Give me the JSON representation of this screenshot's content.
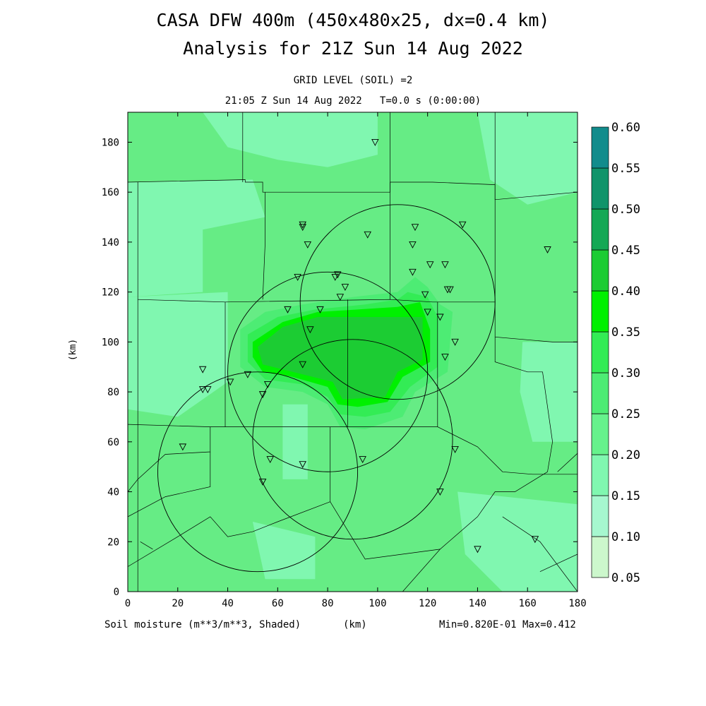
{
  "header": {
    "title_line1": "CASA DFW 400m (450x480x25, dx=0.4 km)",
    "title_line2": "Analysis for 21Z Sun 14 Aug 2022",
    "subtitle_line1": "GRID LEVEL (SOIL) =2",
    "subtitle_line2": "21:05 Z Sun 14 Aug 2022   T=0.0 s (0:00:00)"
  },
  "footer": {
    "field_label": "Soil moisture (m**3/m**3, Shaded)",
    "unit_label": "(km)",
    "minmax": "Min=0.820E-01 Max=0.412"
  },
  "chart_data": {
    "type": "heatmap",
    "xlabel": "(km)",
    "ylabel": "(km)",
    "xlim": [
      0,
      180
    ],
    "ylim": [
      0,
      192
    ],
    "x_ticks": [
      0,
      20,
      40,
      60,
      80,
      100,
      120,
      140,
      160,
      180
    ],
    "y_ticks": [
      0,
      20,
      40,
      60,
      80,
      100,
      120,
      140,
      160,
      180
    ],
    "colorbar": {
      "levels": [
        "0.05",
        "0.10",
        "0.15",
        "0.20",
        "0.25",
        "0.30",
        "0.35",
        "0.40",
        "0.45",
        "0.50",
        "0.55",
        "0.60"
      ],
      "colors": [
        "#ccf7cc",
        "#a6f7cf",
        "#80f7b0",
        "#66f28c",
        "#4dec74",
        "#33ec55",
        "#00f000",
        "#1ccc33",
        "#14a855",
        "#10946a",
        "#128c8c",
        "#0a60e8"
      ]
    },
    "base_color": "#66ec85",
    "regions": [
      {
        "value": 0.17,
        "polygon": [
          [
            0,
            164
          ],
          [
            50,
            165
          ],
          [
            55,
            150
          ],
          [
            30,
            145
          ],
          [
            30,
            120
          ],
          [
            0,
            118
          ]
        ]
      },
      {
        "value": 0.17,
        "polygon": [
          [
            0,
            118
          ],
          [
            40,
            120
          ],
          [
            40,
            84
          ],
          [
            20,
            70
          ],
          [
            0,
            73
          ]
        ]
      },
      {
        "value": 0.17,
        "polygon": [
          [
            30,
            192
          ],
          [
            100,
            192
          ],
          [
            100,
            175
          ],
          [
            80,
            170
          ],
          [
            60,
            173
          ],
          [
            40,
            178
          ]
        ]
      },
      {
        "value": 0.17,
        "polygon": [
          [
            140,
            192
          ],
          [
            180,
            192
          ],
          [
            180,
            160
          ],
          [
            160,
            155
          ],
          [
            145,
            165
          ]
        ]
      },
      {
        "value": 0.17,
        "polygon": [
          [
            158,
            100
          ],
          [
            180,
            100
          ],
          [
            180,
            60
          ],
          [
            162,
            60
          ],
          [
            157,
            80
          ]
        ]
      },
      {
        "value": 0.17,
        "polygon": [
          [
            132,
            40
          ],
          [
            180,
            35
          ],
          [
            180,
            0
          ],
          [
            150,
            0
          ],
          [
            135,
            15
          ]
        ]
      },
      {
        "value": 0.17,
        "polygon": [
          [
            50,
            28
          ],
          [
            75,
            22
          ],
          [
            75,
            5
          ],
          [
            55,
            5
          ]
        ]
      },
      {
        "value": 0.17,
        "polygon": [
          [
            62,
            75
          ],
          [
            72,
            75
          ],
          [
            72,
            45
          ],
          [
            62,
            45
          ]
        ]
      },
      {
        "value": 0.27,
        "polygon": [
          [
            45,
            105
          ],
          [
            55,
            112
          ],
          [
            70,
            115
          ],
          [
            90,
            118
          ],
          [
            108,
            120
          ],
          [
            115,
            126
          ],
          [
            120,
            122
          ],
          [
            125,
            115
          ],
          [
            130,
            112
          ],
          [
            128,
            88
          ],
          [
            115,
            80
          ],
          [
            110,
            70
          ],
          [
            95,
            65
          ],
          [
            85,
            66
          ],
          [
            80,
            75
          ],
          [
            70,
            80
          ],
          [
            55,
            82
          ],
          [
            45,
            90
          ]
        ]
      },
      {
        "value": 0.32,
        "polygon": [
          [
            48,
            103
          ],
          [
            60,
            110
          ],
          [
            75,
            113
          ],
          [
            95,
            115
          ],
          [
            108,
            117
          ],
          [
            112,
            120
          ],
          [
            120,
            118
          ],
          [
            124,
            110
          ],
          [
            124,
            90
          ],
          [
            113,
            82
          ],
          [
            105,
            72
          ],
          [
            95,
            70
          ],
          [
            85,
            71
          ],
          [
            80,
            78
          ],
          [
            70,
            83
          ],
          [
            55,
            85
          ],
          [
            48,
            92
          ]
        ]
      },
      {
        "value": 0.37,
        "polygon": [
          [
            50,
            100
          ],
          [
            62,
            108
          ],
          [
            76,
            112
          ],
          [
            108,
            114
          ],
          [
            117,
            116
          ],
          [
            121,
            105
          ],
          [
            121,
            92
          ],
          [
            110,
            86
          ],
          [
            104,
            76
          ],
          [
            92,
            74
          ],
          [
            84,
            75
          ],
          [
            80,
            82
          ],
          [
            66,
            86
          ],
          [
            54,
            88
          ],
          [
            50,
            94
          ]
        ]
      },
      {
        "value": 0.41,
        "polygon": [
          [
            52,
            98
          ],
          [
            62,
            106
          ],
          [
            76,
            110
          ],
          [
            118,
            110
          ],
          [
            118,
            93
          ],
          [
            108,
            88
          ],
          [
            103,
            78
          ],
          [
            86,
            77
          ],
          [
            82,
            84
          ],
          [
            66,
            88
          ],
          [
            54,
            91
          ]
        ]
      }
    ],
    "boundaries": [
      [
        [
          0,
          164
        ],
        [
          47,
          165
        ],
        [
          47,
          164
        ],
        [
          54,
          164
        ],
        [
          54,
          160
        ],
        [
          105,
          160
        ],
        [
          105,
          164
        ],
        [
          122,
          164
        ],
        [
          147,
          163
        ],
        [
          147,
          157
        ],
        [
          180,
          160
        ]
      ],
      [
        [
          4,
          0
        ],
        [
          4,
          164
        ]
      ],
      [
        [
          46,
          192
        ],
        [
          46,
          164
        ]
      ],
      [
        [
          105,
          192
        ],
        [
          105,
          160
        ]
      ],
      [
        [
          147,
          192
        ],
        [
          147,
          157
        ]
      ],
      [
        [
          4,
          117
        ],
        [
          39,
          116
        ],
        [
          105,
          117
        ],
        [
          122,
          116
        ],
        [
          147,
          116
        ]
      ],
      [
        [
          55,
          160
        ],
        [
          55,
          140
        ],
        [
          54,
          117
        ]
      ],
      [
        [
          105,
          160
        ],
        [
          105,
          117
        ]
      ],
      [
        [
          147,
          157
        ],
        [
          147,
          102
        ],
        [
          170,
          100
        ],
        [
          180,
          100
        ]
      ],
      [
        [
          39,
          116
        ],
        [
          39,
          66
        ]
      ],
      [
        [
          88,
          117
        ],
        [
          88,
          66
        ]
      ],
      [
        [
          124,
          116
        ],
        [
          124,
          66
        ]
      ],
      [
        [
          0,
          67
        ],
        [
          33,
          66
        ],
        [
          124,
          66
        ]
      ],
      [
        [
          124,
          66
        ],
        [
          140,
          58
        ],
        [
          150,
          48
        ],
        [
          162,
          47
        ],
        [
          180,
          47
        ]
      ],
      [
        [
          147,
          102
        ],
        [
          147,
          92
        ],
        [
          160,
          88
        ],
        [
          166,
          88
        ],
        [
          170,
          60
        ],
        [
          168,
          48
        ]
      ],
      [
        [
          0,
          40
        ],
        [
          4,
          45
        ],
        [
          15,
          55
        ],
        [
          33,
          56
        ],
        [
          33,
          66
        ]
      ],
      [
        [
          0,
          30
        ],
        [
          15,
          38
        ],
        [
          33,
          42
        ],
        [
          33,
          56
        ]
      ],
      [
        [
          0,
          10
        ],
        [
          20,
          22
        ],
        [
          33,
          30
        ],
        [
          40,
          22
        ],
        [
          50,
          24
        ],
        [
          60,
          28
        ],
        [
          81,
          36
        ]
      ],
      [
        [
          81,
          66
        ],
        [
          81,
          36
        ],
        [
          95,
          13
        ],
        [
          125,
          17
        ],
        [
          140,
          30
        ],
        [
          147,
          40
        ],
        [
          155,
          40
        ],
        [
          168,
          48
        ]
      ],
      [
        [
          5,
          20
        ],
        [
          10,
          17
        ]
      ],
      [
        [
          110,
          0
        ],
        [
          125,
          17
        ]
      ],
      [
        [
          150,
          30
        ],
        [
          165,
          20
        ],
        [
          180,
          0
        ]
      ],
      [
        [
          165,
          8
        ],
        [
          180,
          15
        ]
      ],
      [
        [
          185,
          60
        ],
        [
          172,
          48
        ]
      ]
    ],
    "radar_rings": [
      {
        "center": [
          108,
          116
        ],
        "radius": 39
      },
      {
        "center": [
          80,
          88
        ],
        "radius": 40
      },
      {
        "center": [
          90,
          61
        ],
        "radius": 40
      },
      {
        "center": [
          52,
          48
        ],
        "radius": 40
      }
    ],
    "stations": [
      [
        99,
        180
      ],
      [
        70,
        147
      ],
      [
        70,
        146
      ],
      [
        134,
        147
      ],
      [
        115,
        146
      ],
      [
        96,
        143
      ],
      [
        72,
        139
      ],
      [
        114,
        139
      ],
      [
        68,
        126
      ],
      [
        84,
        127
      ],
      [
        83,
        126
      ],
      [
        87,
        122
      ],
      [
        121,
        131
      ],
      [
        127,
        131
      ],
      [
        114,
        128
      ],
      [
        128,
        121
      ],
      [
        129,
        121
      ],
      [
        119,
        119
      ],
      [
        85,
        118
      ],
      [
        64,
        113
      ],
      [
        120,
        112
      ],
      [
        125,
        110
      ],
      [
        77,
        113
      ],
      [
        73,
        105
      ],
      [
        131,
        100
      ],
      [
        127,
        94
      ],
      [
        70,
        91
      ],
      [
        30,
        89
      ],
      [
        48,
        87
      ],
      [
        41,
        84
      ],
      [
        56,
        83
      ],
      [
        30,
        81
      ],
      [
        32,
        81
      ],
      [
        54,
        79
      ],
      [
        22,
        58
      ],
      [
        131,
        57
      ],
      [
        57,
        53
      ],
      [
        70,
        51
      ],
      [
        94,
        53
      ],
      [
        54,
        44
      ],
      [
        125,
        40
      ],
      [
        140,
        17
      ],
      [
        163,
        21
      ],
      [
        168,
        137
      ]
    ]
  }
}
